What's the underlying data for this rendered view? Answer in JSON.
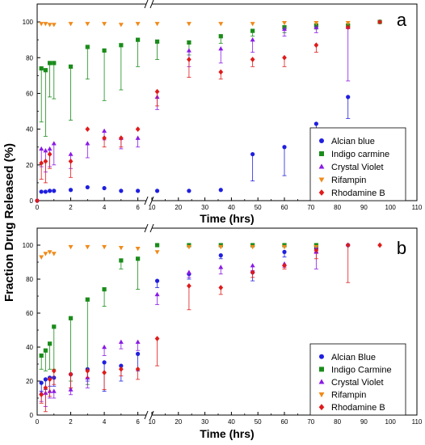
{
  "shared_ylabel": "Fraction Drug Released (%)",
  "legend_symbols": {
    "circle": "●",
    "square": "■",
    "triangle_up": "▲",
    "triangle_down": "▼",
    "diamond": "◆"
  },
  "chart_data": [
    {
      "panel_label": "a",
      "type": "scatter",
      "xlabel": "Time (hrs)",
      "ylabel": "Fraction Drug Released (%)",
      "x_axis_break": [
        6.5,
        10
      ],
      "x_ticks_left": [
        0,
        2,
        4,
        6
      ],
      "x_ticks_right": [
        10,
        20,
        30,
        40,
        50,
        60,
        70,
        80,
        90,
        100,
        110
      ],
      "y_ticks": [
        0,
        20,
        40,
        60,
        80,
        100
      ],
      "xlim": [
        0,
        110
      ],
      "ylim": [
        0,
        110
      ],
      "grid": false,
      "legend_position": "middle-right",
      "series": [
        {
          "name": "Alcian blue",
          "color": "#1f1fe0",
          "marker": "circle",
          "x": [
            0,
            0.25,
            0.5,
            0.75,
            1,
            2,
            3,
            4,
            5,
            6,
            12,
            24,
            36,
            48,
            60,
            72,
            84
          ],
          "y": [
            0,
            5,
            5,
            5.5,
            5.5,
            6,
            7.5,
            7,
            5.5,
            5.5,
            5.5,
            5.5,
            6,
            26,
            30,
            43,
            58
          ],
          "err": [
            0,
            0,
            0,
            0,
            0,
            0,
            0,
            0,
            0,
            0,
            0,
            0,
            0,
            15,
            16,
            15,
            12
          ]
        },
        {
          "name": "Indigo carmine",
          "color": "#1a8c1a",
          "marker": "square",
          "x": [
            0.25,
            0.5,
            0.75,
            1,
            2,
            3,
            4,
            5,
            6,
            12,
            24,
            36,
            48,
            60,
            72,
            84,
            96
          ],
          "y": [
            74,
            73,
            77,
            77,
            75,
            86,
            84,
            87,
            90,
            89,
            88.5,
            92,
            95,
            97,
            98,
            98,
            100
          ],
          "err": [
            30,
            37,
            19,
            20,
            30,
            18,
            28,
            25,
            15,
            10,
            7,
            4,
            3,
            3,
            2,
            1,
            0
          ]
        },
        {
          "name": "Crystal Violet",
          "color": "#8a1ae6",
          "marker": "triangle_up",
          "x": [
            0.25,
            0.5,
            0.75,
            1,
            2,
            3,
            4,
            5,
            6,
            12,
            24,
            36,
            48,
            60,
            72,
            84
          ],
          "y": [
            29,
            28,
            29,
            32,
            26,
            32,
            39,
            35,
            35,
            58,
            84,
            85,
            90,
            96,
            97,
            97
          ],
          "err": [
            10,
            12,
            10,
            12,
            8,
            8,
            5,
            6,
            5,
            7,
            9,
            8,
            7,
            4,
            3,
            30
          ]
        },
        {
          "name": "Rifampin",
          "color": "#f08a1a",
          "marker": "triangle_down",
          "x": [
            0.25,
            0.5,
            0.75,
            1,
            2,
            3,
            4,
            5,
            6,
            12,
            24,
            36,
            48,
            60,
            72,
            84
          ],
          "y": [
            99,
            99,
            98.5,
            98.5,
            99,
            99,
            99,
            98.5,
            99,
            99,
            99,
            99,
            99,
            99.5,
            99.5,
            99.5
          ],
          "err": [
            0,
            0,
            0,
            0,
            0,
            0,
            0,
            0,
            0,
            0,
            0,
            0,
            0,
            0,
            0,
            0
          ]
        },
        {
          "name": "Rhodamine B",
          "color": "#e01a1a",
          "marker": "diamond",
          "x": [
            0,
            0.25,
            0.5,
            0.75,
            2,
            3,
            4,
            5,
            6,
            12,
            24,
            36,
            48,
            60,
            72,
            84,
            96
          ],
          "y": [
            0,
            21,
            22,
            26,
            22,
            40,
            35,
            35,
            40,
            61,
            79,
            72,
            79,
            80,
            87,
            97,
            100
          ],
          "err": [
            0,
            9,
            12,
            8,
            9,
            0,
            5,
            5,
            0,
            8,
            10,
            4,
            4,
            5,
            4,
            0,
            0
          ]
        }
      ]
    },
    {
      "panel_label": "b",
      "type": "scatter",
      "xlabel": "Time (hrs)",
      "ylabel": "Fraction Drug Released (%)",
      "x_axis_break": [
        6.5,
        10
      ],
      "x_ticks_left": [
        0,
        2,
        4,
        6
      ],
      "x_ticks_right": [
        10,
        20,
        30,
        40,
        50,
        60,
        70,
        80,
        90,
        100,
        110
      ],
      "y_ticks": [
        0,
        20,
        40,
        60,
        80,
        100
      ],
      "xlim": [
        0,
        110
      ],
      "ylim": [
        0,
        110
      ],
      "grid": false,
      "legend_position": "bottom-right",
      "series": [
        {
          "name": "Alcian Blue",
          "color": "#1f1fe0",
          "marker": "circle",
          "x": [
            0.25,
            0.5,
            0.75,
            1,
            2,
            3,
            4,
            5,
            6,
            12,
            24,
            36,
            48,
            60,
            72,
            84
          ],
          "y": [
            19,
            21,
            22,
            22,
            24,
            27,
            31,
            29,
            36,
            79,
            83,
            94,
            84,
            96,
            98,
            100
          ],
          "err": [
            5,
            6,
            5,
            5,
            8,
            7,
            17,
            9,
            10,
            4,
            3,
            2,
            5,
            3,
            2,
            0
          ]
        },
        {
          "name": "Indigo Carmine",
          "color": "#1a8c1a",
          "marker": "square",
          "x": [
            0.25,
            0.5,
            0.75,
            1,
            2,
            3,
            4,
            5,
            6,
            12,
            24,
            36,
            48,
            60,
            72
          ],
          "y": [
            35,
            38,
            42,
            52,
            57,
            68,
            74,
            91,
            92,
            100,
            100,
            100,
            100,
            100,
            100
          ],
          "err": [
            8,
            12,
            15,
            25,
            37,
            50,
            10,
            5,
            18,
            0,
            0,
            0,
            0,
            0,
            0
          ]
        },
        {
          "name": "Crystal Violet",
          "color": "#8a1ae6",
          "marker": "triangle_up",
          "x": [
            0.25,
            0.5,
            0.75,
            1,
            2,
            3,
            4,
            5,
            6,
            12,
            24,
            36,
            48,
            60,
            72
          ],
          "y": [
            13,
            13,
            14,
            14,
            15,
            22,
            40,
            43,
            43,
            71,
            84,
            87,
            88,
            89,
            96
          ],
          "err": [
            5,
            8,
            4,
            4,
            3,
            6,
            5,
            4,
            5,
            6,
            3,
            4,
            3,
            2,
            10
          ]
        },
        {
          "name": "Rifampin",
          "color": "#f08a1a",
          "marker": "triangle_down",
          "x": [
            0.25,
            0.5,
            0.75,
            1,
            2,
            3,
            4,
            5,
            6,
            12,
            24,
            36,
            48,
            60,
            72
          ],
          "y": [
            93,
            95,
            96,
            95,
            99,
            99,
            99,
            98.5,
            98,
            96,
            99,
            99,
            99,
            99,
            99
          ],
          "err": [
            0,
            0,
            0,
            0,
            0,
            0,
            0,
            0,
            0,
            0,
            0,
            0,
            0,
            0,
            0
          ]
        },
        {
          "name": "Rhodamine B",
          "color": "#e01a1a",
          "marker": "diamond",
          "x": [
            0.25,
            0.5,
            0.75,
            1,
            2,
            3,
            4,
            5,
            6,
            12,
            24,
            36,
            48,
            60,
            72,
            84,
            96
          ],
          "y": [
            12,
            16,
            21,
            26,
            24,
            26,
            25,
            27,
            27,
            45,
            76,
            75,
            84,
            88,
            97,
            100,
            100
          ],
          "err": [
            5,
            14,
            10,
            8,
            8,
            4,
            10,
            4,
            6,
            16,
            14,
            4,
            3,
            2,
            5,
            22,
            0
          ]
        }
      ]
    }
  ]
}
